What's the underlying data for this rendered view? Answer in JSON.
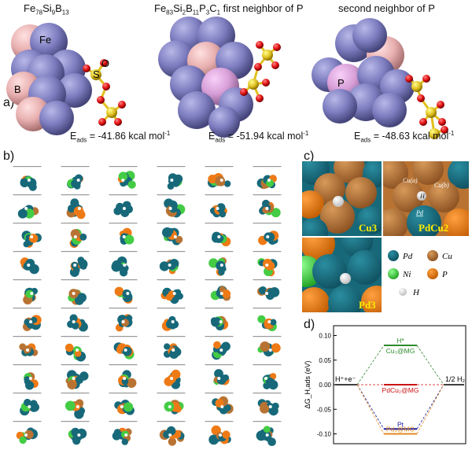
{
  "panel_a": {
    "label": "a)",
    "titles": [
      {
        "base": "Fe",
        "s1": "78",
        "e2": "Si",
        "s2": "9",
        "e3": "B",
        "s3": "13",
        "e4": "",
        "s4": "",
        "e5": "",
        "s5": "",
        "suffix": ""
      },
      {
        "base": "Fe",
        "s1": "83",
        "e2": "Si",
        "s2": "2",
        "e3": "B",
        "s3": "11",
        "e4": "P",
        "s4": "3",
        "e5": "C",
        "s5": "1",
        "suffix": "  first neighbor of P"
      },
      {
        "plain": "second neighbor of P"
      }
    ],
    "eads": [
      {
        "prefix": "E",
        "sub": "ads",
        "value": " = -41.86 kcal mol",
        "sup": "-1"
      },
      {
        "prefix": "E",
        "sub": "ads",
        "value": " = -51.94 kcal mol",
        "sup": "-1"
      },
      {
        "prefix": "E",
        "sub": "ads",
        "value": " = -48.63 kcal mol",
        "sup": "-1"
      }
    ],
    "atom_labels": {
      "fe": "Fe",
      "b": "B",
      "s": "S",
      "o": "O",
      "p": "P"
    }
  },
  "panel_b": {
    "label": "b)"
  },
  "panel_c": {
    "label": "c)",
    "tiles": {
      "cu3": "Cu3",
      "pdcu2": "PdCu2",
      "pd3": "Pd3"
    },
    "tile_labels": {
      "cua": "Cu(a)",
      "cub": "Cu(b)",
      "h": "H",
      "pd": "Pd"
    },
    "legend": [
      {
        "name": "Pd",
        "color": "#17697a"
      },
      {
        "name": "Cu",
        "color": "#b87333"
      },
      {
        "name": "Ni",
        "color": "#44cc44"
      },
      {
        "name": "P",
        "color": "#ee7a16"
      },
      {
        "name": "H",
        "color": "#eeeeee"
      }
    ]
  },
  "panel_d": {
    "label": "d)",
    "chart_data": {
      "type": "line",
      "ylabel": "ΔG_H,ads (eV)",
      "ylim": [
        -0.12,
        0.12
      ],
      "yticks": [
        "0.10",
        "0.05",
        "0.00",
        "-0.05",
        "-0.10"
      ],
      "ytick_values": [
        0.1,
        0.05,
        0.0,
        -0.05,
        -0.1
      ],
      "left_state": "H⁺+e⁻",
      "right_state": "1/2 H₂",
      "levels": [
        {
          "label": "H*",
          "value": 0.08,
          "color": "#2e8b2e"
        },
        {
          "label": "Cu₃@MG",
          "value": 0.08,
          "color": "#2e8b2e"
        },
        {
          "label": "PdCu₂@MG",
          "value": 0.0,
          "color": "#cc1111"
        },
        {
          "label": "Pt",
          "value": -0.09,
          "color": "#1a1aa0"
        },
        {
          "label": "Pd₃@MG",
          "value": -0.1,
          "color": "#e08a20"
        }
      ]
    }
  }
}
